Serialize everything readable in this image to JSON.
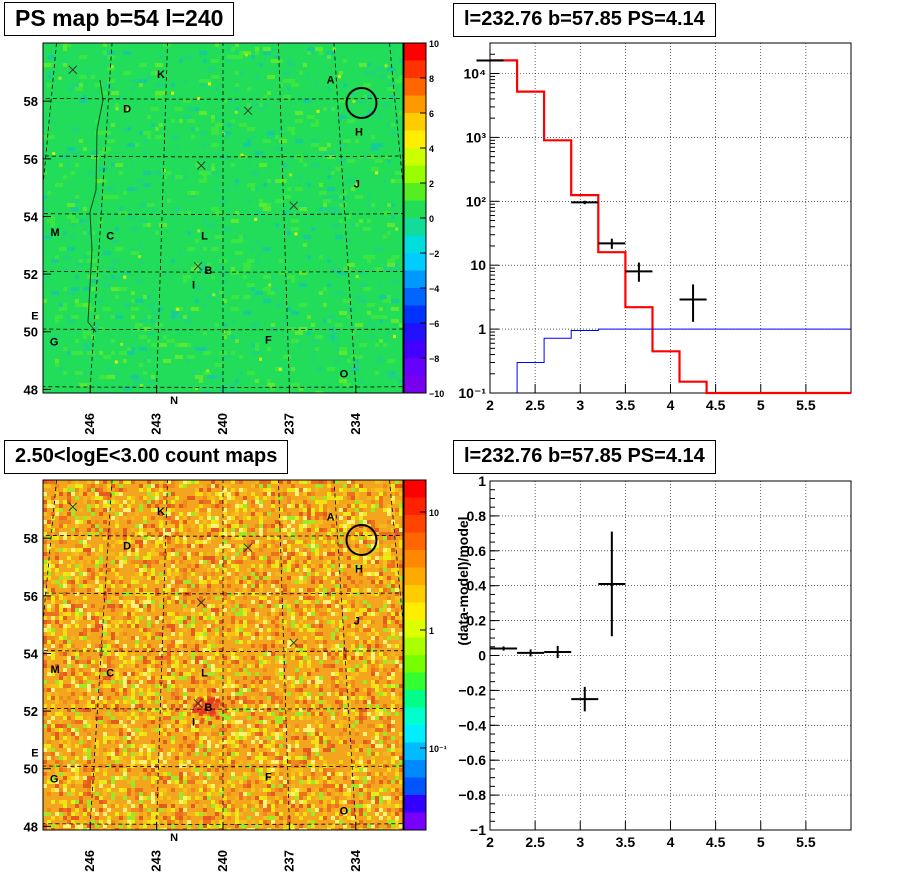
{
  "panels": {
    "tl": {
      "title": "PS map b=54 l=240"
    },
    "tr": {
      "title": "l=232.76 b=57.85 PS=4.14"
    },
    "bl": {
      "title": "2.50<logE<3.00 count maps"
    },
    "br": {
      "title": "l=232.76 b=57.85 PS=4.14"
    }
  },
  "maps": {
    "x_ticks": [
      "246",
      "243",
      "240",
      "237",
      "234"
    ],
    "y_ticks": [
      "58",
      "56",
      "54",
      "52",
      "50",
      "48"
    ],
    "source_labels": [
      {
        "t": "A",
        "l": 234.3,
        "b": 58.7
      },
      {
        "t": "K",
        "l": 243.3,
        "b": 58.9
      },
      {
        "t": "D",
        "l": 245.0,
        "b": 57.7
      },
      {
        "t": "H",
        "l": 233.0,
        "b": 56.9
      },
      {
        "t": "J",
        "l": 233.3,
        "b": 55.1
      },
      {
        "t": "M",
        "l": 248.2,
        "b": 53.4
      },
      {
        "t": "C",
        "l": 245.5,
        "b": 53.3
      },
      {
        "t": "L",
        "l": 240.9,
        "b": 53.3
      },
      {
        "t": "B",
        "l": 240.7,
        "b": 52.1
      },
      {
        "t": "I",
        "l": 241.4,
        "b": 51.6
      },
      {
        "t": "E",
        "l": 248.8,
        "b": 50.5
      },
      {
        "t": "G",
        "l": 247.8,
        "b": 49.6
      },
      {
        "t": "F",
        "l": 237.9,
        "b": 49.7
      },
      {
        "t": "O",
        "l": 234.5,
        "b": 48.5
      },
      {
        "t": "N",
        "l": 242.2,
        "b": 47.6
      }
    ],
    "x_markers": [
      {
        "l": 248.0,
        "b": 59.0
      },
      {
        "l": 238.7,
        "b": 57.6
      },
      {
        "l": 241.1,
        "b": 55.7
      },
      {
        "l": 236.5,
        "b": 54.3
      },
      {
        "l": 241.2,
        "b": 52.2
      }
    ],
    "target": {
      "l": 232.76,
      "b": 57.85
    },
    "ps_colorbar": {
      "min": -10,
      "max": 10,
      "ticks": [
        "10",
        "8",
        "6",
        "4",
        "2",
        "0",
        "−2",
        "−4",
        "−6",
        "−8",
        "−10"
      ]
    },
    "count_colorbar": {
      "ticks": [
        "10",
        "1",
        "10⁻¹"
      ]
    }
  },
  "chart_data": [
    {
      "type": "line",
      "name": "spectrum",
      "xlim": [
        2,
        6
      ],
      "ylim": [
        0.1,
        30000
      ],
      "log_y": true,
      "grid": true,
      "x_ticks": [
        "2",
        "2.5",
        "3",
        "3.5",
        "4",
        "4.5",
        "5",
        "5.5"
      ],
      "y_ticks": [
        {
          "v": 10000,
          "label": "10⁴"
        },
        {
          "v": 1000,
          "label": "10³"
        },
        {
          "v": 100,
          "label": "10²"
        },
        {
          "v": 10,
          "label": "10"
        },
        {
          "v": 1,
          "label": "1"
        },
        {
          "v": 0.1,
          "label": "10⁻¹"
        }
      ],
      "total_model": [
        {
          "x0": 2.0,
          "x1": 2.3,
          "y": 16000
        },
        {
          "x0": 2.3,
          "x1": 2.6,
          "y": 5200
        },
        {
          "x0": 2.6,
          "x1": 2.9,
          "y": 900
        },
        {
          "x0": 2.9,
          "x1": 3.2,
          "y": 125
        },
        {
          "x0": 3.2,
          "x1": 3.5,
          "y": 16
        },
        {
          "x0": 3.5,
          "x1": 3.8,
          "y": 2.2
        },
        {
          "x0": 3.8,
          "x1": 4.1,
          "y": 0.45
        },
        {
          "x0": 4.1,
          "x1": 4.4,
          "y": 0.15
        },
        {
          "x0": 4.4,
          "x1": 6.0,
          "y": 0.1
        }
      ],
      "source_model": [
        {
          "x0": 2.3,
          "x1": 2.6,
          "y": 0.3
        },
        {
          "x0": 2.6,
          "x1": 2.9,
          "y": 0.72
        },
        {
          "x0": 2.9,
          "x1": 3.2,
          "y": 0.95
        },
        {
          "x0": 3.2,
          "x1": 6.0,
          "y": 1.0
        }
      ],
      "data_points": [
        {
          "x": 2.0,
          "xerr": 0.15,
          "y": 16000,
          "ylo": 15800,
          "yhi": 16200
        },
        {
          "x": 3.05,
          "xerr": 0.15,
          "y": 96,
          "ylo": 90,
          "yhi": 102
        },
        {
          "x": 3.35,
          "xerr": 0.15,
          "y": 22,
          "ylo": 18,
          "yhi": 26
        },
        {
          "x": 3.65,
          "xerr": 0.15,
          "y": 8,
          "ylo": 5.5,
          "yhi": 11
        },
        {
          "x": 4.25,
          "xerr": 0.15,
          "y": 2.9,
          "ylo": 1.3,
          "yhi": 5.0
        }
      ]
    },
    {
      "type": "scatter",
      "name": "residuals",
      "xlim": [
        2,
        6
      ],
      "ylim": [
        -1,
        1
      ],
      "grid": true,
      "ylabel": "(data-model)/model",
      "x_ticks": [
        "2",
        "2.5",
        "3",
        "3.5",
        "4",
        "4.5",
        "5",
        "5.5"
      ],
      "y_ticks": [
        "1",
        "0.8",
        "0.6",
        "0.4",
        "0.2",
        "0",
        "−0.2",
        "−0.4",
        "−0.6",
        "−0.8",
        "−1"
      ],
      "y_tick_values": [
        1,
        0.8,
        0.6,
        0.4,
        0.2,
        0,
        -0.2,
        -0.4,
        -0.6,
        -0.8,
        -1
      ],
      "points": [
        {
          "x": 2.15,
          "xerr": 0.15,
          "y": 0.04,
          "yerr": 0.012
        },
        {
          "x": 2.45,
          "xerr": 0.15,
          "y": 0.015,
          "yerr": 0.02
        },
        {
          "x": 2.75,
          "xerr": 0.15,
          "y": 0.02,
          "yerr": 0.035
        },
        {
          "x": 3.05,
          "xerr": 0.15,
          "y": -0.25,
          "yerr": 0.07
        },
        {
          "x": 3.35,
          "xerr": 0.15,
          "y": 0.41,
          "yerr": 0.3
        }
      ]
    }
  ]
}
